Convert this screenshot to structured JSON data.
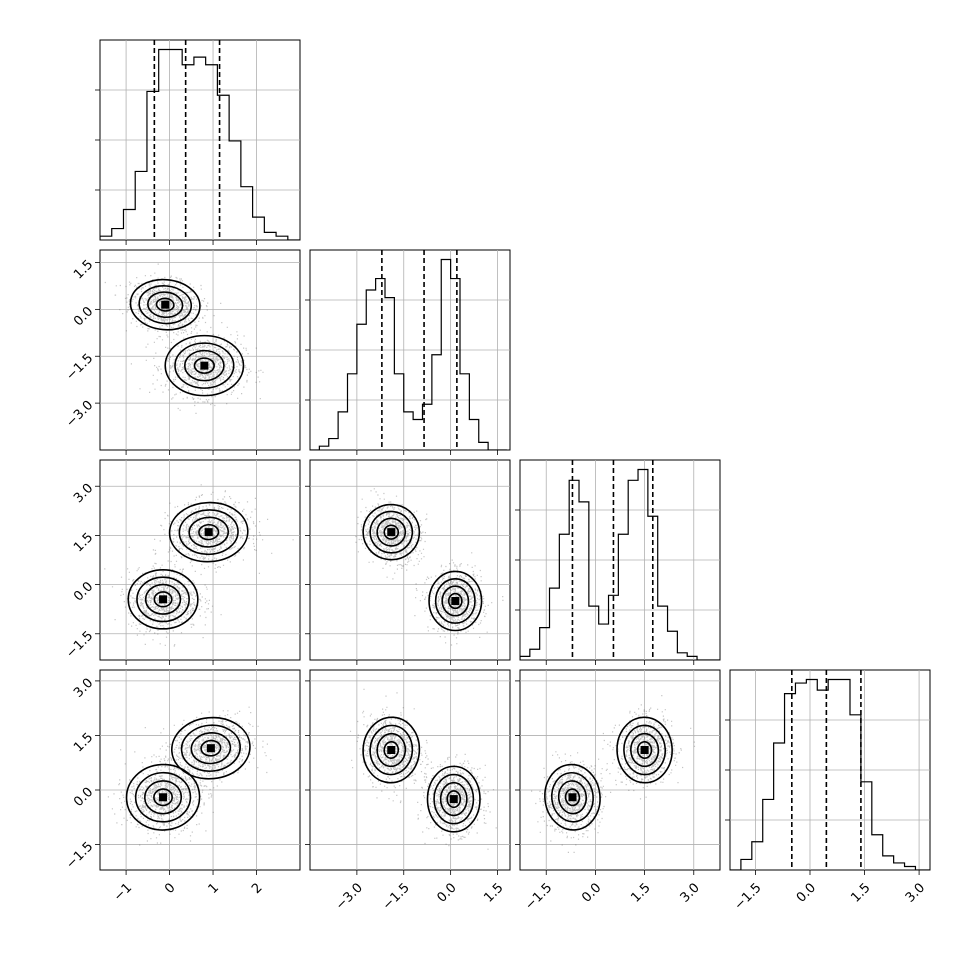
{
  "chart_data": {
    "type": "corner",
    "n_params": 4,
    "grid": true,
    "colors": {
      "points": "#555555",
      "lines": "#000000",
      "grid": "#b0b0b0"
    },
    "ranges": [
      [
        -1.6,
        3.0
      ],
      [
        -4.5,
        1.9
      ],
      [
        -2.3,
        3.8
      ],
      [
        -2.2,
        3.3
      ]
    ],
    "axis_ticks": [
      {
        "values": [
          -1,
          0,
          1,
          2
        ],
        "labels": [
          "−1",
          "0",
          "1",
          "2"
        ]
      },
      {
        "values": [
          -3.0,
          -1.5,
          0.0,
          1.5
        ],
        "labels": [
          "−3.0",
          "−1.5",
          "0.0",
          "1.5"
        ]
      },
      {
        "values": [
          -1.5,
          0.0,
          1.5,
          3.0
        ],
        "labels": [
          "−1.5",
          "0.0",
          "1.5",
          "3.0"
        ]
      },
      {
        "values": [
          -1.5,
          0.0,
          1.5,
          3.0
        ],
        "labels": [
          "−1.5",
          "0.0",
          "1.5",
          "3.0"
        ]
      }
    ],
    "diagonal": [
      {
        "bins": [
          -1.6,
          -1.33,
          -1.06,
          -0.79,
          -0.52,
          -0.25,
          0.02,
          0.29,
          0.56,
          0.83,
          1.1,
          1.37,
          1.64,
          1.91,
          2.18,
          2.45,
          2.72,
          3.0
        ],
        "counts": [
          1,
          3,
          8,
          18,
          39,
          50,
          50,
          46,
          48,
          46,
          38,
          26,
          14,
          6,
          2,
          1,
          0
        ],
        "quantiles": [
          -0.35,
          0.37,
          1.15
        ]
      },
      {
        "bins": [
          -4.5,
          -4.2,
          -3.9,
          -3.6,
          -3.3,
          -3.0,
          -2.7,
          -2.4,
          -2.1,
          -1.8,
          -1.5,
          -1.2,
          -0.9,
          -0.6,
          -0.3,
          0.0,
          0.3,
          0.6,
          0.9,
          1.2,
          1.5,
          1.8
        ],
        "counts": [
          0,
          1,
          3,
          10,
          20,
          33,
          42,
          45,
          40,
          20,
          10,
          8,
          12,
          25,
          50,
          45,
          20,
          8,
          2,
          0,
          0
        ],
        "quantiles": [
          -2.2,
          -0.85,
          0.2
        ]
      },
      {
        "bins": [
          -2.3,
          -2.0,
          -1.7,
          -1.4,
          -1.1,
          -0.8,
          -0.5,
          -0.2,
          0.1,
          0.4,
          0.7,
          1.0,
          1.3,
          1.6,
          1.9,
          2.2,
          2.5,
          2.8,
          3.1,
          3.4,
          3.8
        ],
        "counts": [
          1,
          3,
          9,
          20,
          35,
          50,
          44,
          15,
          10,
          18,
          35,
          50,
          53,
          40,
          15,
          8,
          2,
          1,
          0,
          0
        ],
        "quantiles": [
          -0.7,
          0.55,
          1.75
        ]
      },
      {
        "bins": [
          -2.2,
          -1.9,
          -1.6,
          -1.3,
          -1.0,
          -0.7,
          -0.4,
          -0.1,
          0.2,
          0.5,
          0.8,
          1.1,
          1.4,
          1.7,
          2.0,
          2.3,
          2.6,
          2.9,
          3.3
        ],
        "counts": [
          0,
          3,
          8,
          20,
          36,
          50,
          53,
          54,
          51,
          54,
          54,
          44,
          25,
          10,
          4,
          2,
          1,
          0
        ],
        "quantiles": [
          -0.5,
          0.45,
          1.4
        ]
      }
    ],
    "pairs": [
      {
        "row": 1,
        "col": 0,
        "modes": [
          {
            "cx": -0.1,
            "cy": 0.15,
            "sx": 0.4,
            "sy": 0.4,
            "rho": -0.2,
            "weight": 0.5
          },
          {
            "cx": 0.8,
            "cy": -1.8,
            "sx": 0.45,
            "sy": 0.48,
            "rho": 0.0,
            "weight": 0.5
          }
        ]
      },
      {
        "row": 2,
        "col": 0,
        "modes": [
          {
            "cx": -0.15,
            "cy": -0.45,
            "sx": 0.4,
            "sy": 0.45,
            "rho": 0.0,
            "weight": 0.5
          },
          {
            "cx": 0.9,
            "cy": 1.6,
            "sx": 0.45,
            "sy": 0.45,
            "rho": 0.1,
            "weight": 0.5
          }
        ]
      },
      {
        "row": 2,
        "col": 1,
        "modes": [
          {
            "cx": -1.9,
            "cy": 1.6,
            "sx": 0.45,
            "sy": 0.42,
            "rho": -0.15,
            "weight": 0.5
          },
          {
            "cx": 0.15,
            "cy": -0.5,
            "sx": 0.42,
            "sy": 0.45,
            "rho": 0.0,
            "weight": 0.5
          }
        ]
      },
      {
        "row": 3,
        "col": 0,
        "modes": [
          {
            "cx": -0.15,
            "cy": -0.2,
            "sx": 0.42,
            "sy": 0.45,
            "rho": 0.1,
            "weight": 0.5
          },
          {
            "cx": 0.95,
            "cy": 1.15,
            "sx": 0.45,
            "sy": 0.42,
            "rho": 0.2,
            "weight": 0.5
          }
        ]
      },
      {
        "row": 3,
        "col": 1,
        "modes": [
          {
            "cx": -1.9,
            "cy": 1.1,
            "sx": 0.45,
            "sy": 0.45,
            "rho": -0.1,
            "weight": 0.5
          },
          {
            "cx": 0.1,
            "cy": -0.25,
            "sx": 0.42,
            "sy": 0.45,
            "rho": 0.0,
            "weight": 0.5
          }
        ]
      },
      {
        "row": 3,
        "col": 2,
        "modes": [
          {
            "cx": -0.7,
            "cy": -0.2,
            "sx": 0.42,
            "sy": 0.45,
            "rho": 0.15,
            "weight": 0.5
          },
          {
            "cx": 1.5,
            "cy": 1.1,
            "sx": 0.42,
            "sy": 0.45,
            "rho": 0.05,
            "weight": 0.5
          }
        ]
      }
    ]
  }
}
